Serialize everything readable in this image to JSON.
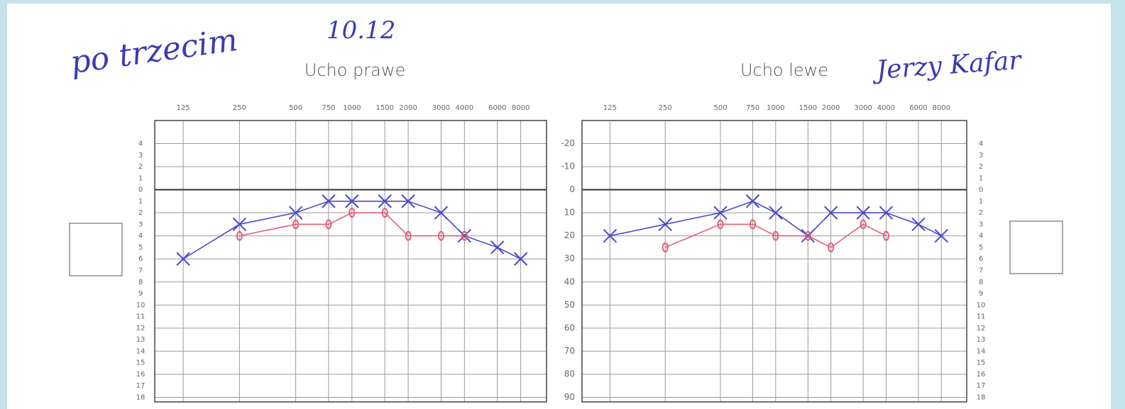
{
  "annotations": {
    "left_note": "po trzecim",
    "date": "10.12",
    "right_note": "Jerzy Kafar"
  },
  "chart_data": [
    {
      "type": "line",
      "title": "Ucho prawe",
      "x": [
        125,
        250,
        500,
        750,
        1000,
        1500,
        2000,
        3000,
        4000,
        6000,
        8000
      ],
      "xlim": [
        88,
        11000
      ],
      "xscale": "log",
      "xticks": [
        125,
        250,
        500,
        750,
        1000,
        1500,
        2000,
        3000,
        4000,
        6000,
        8000
      ],
      "ylim": [
        92,
        -30
      ],
      "yticks": [
        {
          "value": -20,
          "label": "4"
        },
        {
          "value": -15,
          "label": "3"
        },
        {
          "value": -10,
          "label": "2"
        },
        {
          "value": -5,
          "label": "1"
        },
        0,
        {
          "value": 5,
          "label": "1"
        },
        {
          "value": 10,
          "label": "2"
        },
        {
          "value": 15,
          "label": "3"
        },
        {
          "value": 20,
          "label": "4"
        },
        {
          "value": 25,
          "label": "5"
        },
        {
          "value": 30,
          "label": "6"
        },
        {
          "value": 35,
          "label": "7"
        },
        {
          "value": 40,
          "label": "8"
        },
        {
          "value": 45,
          "label": "9"
        },
        {
          "value": 50,
          "label": "10"
        },
        {
          "value": 55,
          "label": "11"
        },
        {
          "value": 60,
          "label": "12"
        },
        {
          "value": 65,
          "label": "13"
        },
        {
          "value": 70,
          "label": "14"
        },
        {
          "value": 75,
          "label": "15"
        },
        {
          "value": 80,
          "label": "16"
        },
        {
          "value": 85,
          "label": "17"
        },
        {
          "value": 90,
          "label": "18"
        }
      ],
      "grid": true,
      "series": [
        {
          "color": "#4a4ac8",
          "marker": "x",
          "values": [
            30,
            15,
            10,
            5,
            5,
            5,
            5,
            10,
            20,
            25,
            30
          ]
        },
        {
          "color": "#e0607a",
          "marker": "o",
          "values": [
            null,
            20,
            15,
            15,
            10,
            10,
            20,
            20,
            20,
            null,
            null
          ]
        }
      ]
    },
    {
      "type": "line",
      "title": "Ucho lewe",
      "x": [
        125,
        250,
        500,
        750,
        1000,
        1500,
        2000,
        3000,
        4000,
        6000,
        8000
      ],
      "xlim": [
        88,
        11000
      ],
      "xscale": "log",
      "xticks": [
        125,
        250,
        500,
        750,
        1000,
        1500,
        2000,
        3000,
        4000,
        6000,
        8000
      ],
      "ylim": [
        92,
        -30
      ],
      "yticks": [
        -20,
        -10,
        0,
        10,
        20,
        30,
        40,
        50,
        60,
        70,
        80,
        90
      ],
      "y2lim": [
        92,
        -30
      ],
      "y2ticks": [
        {
          "value": -20,
          "label": "4"
        },
        {
          "value": -15,
          "label": "3"
        },
        {
          "value": -10,
          "label": "2"
        },
        {
          "value": -5,
          "label": "1"
        },
        0,
        {
          "value": 5,
          "label": "1"
        },
        {
          "value": 10,
          "label": "2"
        },
        {
          "value": 15,
          "label": "3"
        },
        {
          "value": 20,
          "label": "4"
        },
        {
          "value": 25,
          "label": "5"
        },
        {
          "value": 30,
          "label": "6"
        },
        {
          "value": 35,
          "label": "7"
        },
        {
          "value": 40,
          "label": "8"
        },
        {
          "value": 45,
          "label": "9"
        },
        {
          "value": 50,
          "label": "10"
        },
        {
          "value": 55,
          "label": "11"
        },
        {
          "value": 60,
          "label": "12"
        },
        {
          "value": 65,
          "label": "13"
        },
        {
          "value": 70,
          "label": "14"
        },
        {
          "value": 75,
          "label": "15"
        },
        {
          "value": 80,
          "label": "16"
        },
        {
          "value": 85,
          "label": "17"
        },
        {
          "value": 90,
          "label": "18"
        }
      ],
      "grid": true,
      "series": [
        {
          "color": "#4a4ac8",
          "marker": "x",
          "values": [
            20,
            15,
            10,
            5,
            10,
            20,
            10,
            10,
            10,
            15,
            20
          ]
        },
        {
          "color": "#e0607a",
          "marker": "o",
          "values": [
            null,
            25,
            15,
            15,
            20,
            20,
            25,
            15,
            20,
            null,
            null
          ]
        }
      ]
    }
  ]
}
